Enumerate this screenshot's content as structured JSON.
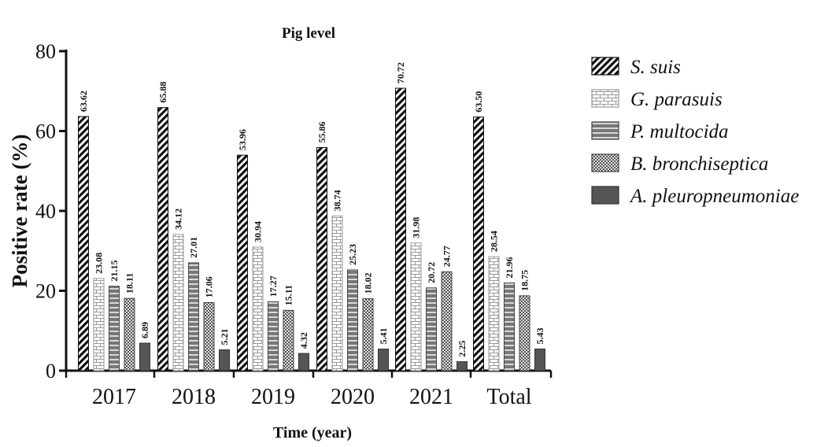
{
  "chart_data": {
    "type": "bar",
    "title": "Pig level",
    "xlabel": "Time (year)",
    "ylabel": "Positive rate (%)",
    "ylim": [
      0,
      80
    ],
    "yticks": [
      0,
      20,
      40,
      60,
      80
    ],
    "grid": false,
    "legend_position": "right",
    "categories": [
      "2017",
      "2018",
      "2019",
      "2020",
      "2021",
      "Total"
    ],
    "series": [
      {
        "name": "S. suis",
        "values": [
          63.62,
          65.88,
          53.96,
          55.86,
          70.72,
          63.5
        ],
        "labels": [
          "63.62",
          "65.88",
          "53.96",
          "55.86",
          "70.72",
          "63.50"
        ]
      },
      {
        "name": "G. parasuis",
        "values": [
          23.08,
          34.12,
          30.94,
          38.74,
          31.98,
          28.54
        ],
        "labels": [
          "23.08",
          "34.12",
          "30.94",
          "38.74",
          "31.98",
          "28.54"
        ]
      },
      {
        "name": "P. multocida",
        "values": [
          21.15,
          27.01,
          17.27,
          25.23,
          20.72,
          21.96
        ],
        "labels": [
          "21.15",
          "27.01",
          "17.27",
          "25.23",
          "20.72",
          "21.96"
        ]
      },
      {
        "name": "B. bronchiseptica",
        "values": [
          18.11,
          17.06,
          15.11,
          18.02,
          24.77,
          18.75
        ],
        "labels": [
          "18.11",
          "17.06",
          "15.11",
          "18.02",
          "24.77",
          "18.75"
        ]
      },
      {
        "name": "A. pleuropneumoniae",
        "values": [
          6.89,
          5.21,
          4.32,
          5.41,
          2.25,
          5.43
        ],
        "labels": [
          "6.89",
          "5.21",
          "4.32",
          "5.41",
          "2.25",
          "5.43"
        ]
      }
    ]
  }
}
